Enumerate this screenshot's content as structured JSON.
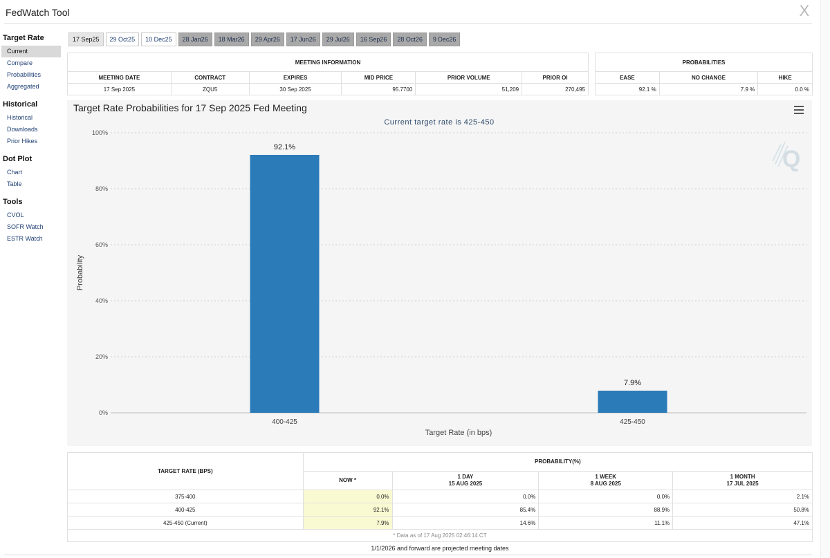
{
  "window": {
    "title": "FedWatch Tool",
    "close_glyph": "X"
  },
  "sidebar": {
    "sections": [
      {
        "title": "Target Rate",
        "items": [
          "Current",
          "Compare",
          "Probabilities",
          "Aggregated"
        ]
      },
      {
        "title": "Historical",
        "items": [
          "Historical",
          "Downloads",
          "Prior Hikes"
        ]
      },
      {
        "title": "Dot Plot",
        "items": [
          "Chart",
          "Table"
        ]
      },
      {
        "title": "Tools",
        "items": [
          "CVOL",
          "SOFR Watch",
          "ESTR Watch"
        ]
      }
    ],
    "active_item": "Current"
  },
  "tabs": [
    {
      "label": "17 Sep25",
      "state": "active"
    },
    {
      "label": "29 Oct25",
      "state": "normal"
    },
    {
      "label": "10 Dec25",
      "state": "normal"
    },
    {
      "label": "28 Jan26",
      "state": "future"
    },
    {
      "label": "18 Mar26",
      "state": "future"
    },
    {
      "label": "29 Apr26",
      "state": "future"
    },
    {
      "label": "17 Jun26",
      "state": "future"
    },
    {
      "label": "29 Jul26",
      "state": "future"
    },
    {
      "label": "16 Sep26",
      "state": "future"
    },
    {
      "label": "28 Oct26",
      "state": "future"
    },
    {
      "label": "9 Dec26",
      "state": "future"
    }
  ],
  "meeting_info": {
    "heading": "MEETING INFORMATION",
    "columns": [
      "MEETING DATE",
      "CONTRACT",
      "EXPIRES",
      "MID PRICE",
      "PRIOR VOLUME",
      "PRIOR OI"
    ],
    "row": [
      "17 Sep 2025",
      "ZQU5",
      "30 Sep 2025",
      "95.7700",
      "51,209",
      "270,495"
    ]
  },
  "probabilities": {
    "heading": "PROBABILITIES",
    "columns": [
      "EASE",
      "NO CHANGE",
      "HIKE"
    ],
    "row": [
      "92.1 %",
      "7.9 %",
      "0.0 %"
    ]
  },
  "chart": {
    "title": "Target Rate Probabilities for 17 Sep 2025 Fed Meeting",
    "subtitle": "Current target rate is 425-450",
    "menu_icon": "hamburger-menu-icon",
    "watermark_icon": "cme-q-logo-icon"
  },
  "chart_data": {
    "type": "bar",
    "title": "Target Rate Probabilities for 17 Sep 2025 Fed Meeting",
    "subtitle": "Current target rate is 425-450",
    "xlabel": "Target Rate (in bps)",
    "ylabel": "Probability",
    "categories": [
      "400-425",
      "425-450"
    ],
    "values": [
      92.1,
      7.9
    ],
    "data_labels": [
      "92.1%",
      "7.9%"
    ],
    "ylim": [
      0,
      100
    ],
    "yticks": [
      0,
      20,
      40,
      60,
      80,
      100
    ],
    "ytick_labels": [
      "0%",
      "20%",
      "40%",
      "60%",
      "80%",
      "100%"
    ],
    "grid": true,
    "bar_color": "#2b7bb9"
  },
  "rates_table": {
    "rate_header": "TARGET RATE (BPS)",
    "prob_header": "PROBABILITY(%)",
    "sub_headers": [
      {
        "line1": "NOW *",
        "line2": ""
      },
      {
        "line1": "1 DAY",
        "line2": "15 AUG 2025"
      },
      {
        "line1": "1 WEEK",
        "line2": "8 AUG 2025"
      },
      {
        "line1": "1 MONTH",
        "line2": "17 JUL 2025"
      }
    ],
    "rows": [
      {
        "rate": "375-400",
        "values": [
          "0.0%",
          "0.0%",
          "0.0%",
          "2.1%"
        ]
      },
      {
        "rate": "400-425",
        "values": [
          "92.1%",
          "85.4%",
          "88.9%",
          "50.8%"
        ]
      },
      {
        "rate": "425-450 (Current)",
        "values": [
          "7.9%",
          "14.6%",
          "11.1%",
          "47.1%"
        ]
      }
    ],
    "footnote": "* Data as of 17 Aug 2025 02:46:14 CT"
  },
  "projected_note": "1/1/2026 and forward are projected meeting dates"
}
